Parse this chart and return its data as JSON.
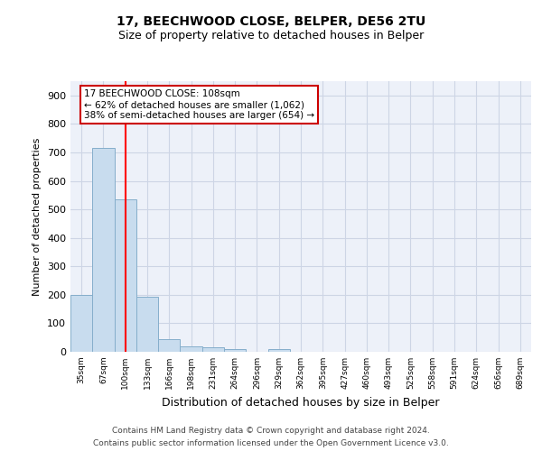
{
  "title1": "17, BEECHWOOD CLOSE, BELPER, DE56 2TU",
  "title2": "Size of property relative to detached houses in Belper",
  "xlabel": "Distribution of detached houses by size in Belper",
  "ylabel": "Number of detached properties",
  "categories": [
    "35sqm",
    "67sqm",
    "100sqm",
    "133sqm",
    "166sqm",
    "198sqm",
    "231sqm",
    "264sqm",
    "296sqm",
    "329sqm",
    "362sqm",
    "395sqm",
    "427sqm",
    "460sqm",
    "493sqm",
    "525sqm",
    "558sqm",
    "591sqm",
    "624sqm",
    "656sqm",
    "689sqm"
  ],
  "values": [
    200,
    715,
    535,
    193,
    45,
    20,
    15,
    10,
    0,
    8,
    0,
    0,
    0,
    0,
    0,
    0,
    0,
    0,
    0,
    0,
    0
  ],
  "bar_color": "#c8dcee",
  "bar_edge_color": "#85aecb",
  "red_line_index": 2,
  "ylim": [
    0,
    950
  ],
  "yticks": [
    0,
    100,
    200,
    300,
    400,
    500,
    600,
    700,
    800,
    900
  ],
  "annotation_text": "17 BEECHWOOD CLOSE: 108sqm\n← 62% of detached houses are smaller (1,062)\n38% of semi-detached houses are larger (654) →",
  "annotation_box_color": "#ffffff",
  "annotation_box_edge": "#cc0000",
  "footnote1": "Contains HM Land Registry data © Crown copyright and database right 2024.",
  "footnote2": "Contains public sector information licensed under the Open Government Licence v3.0.",
  "grid_color": "#cdd5e5",
  "background_color": "#edf1f9"
}
